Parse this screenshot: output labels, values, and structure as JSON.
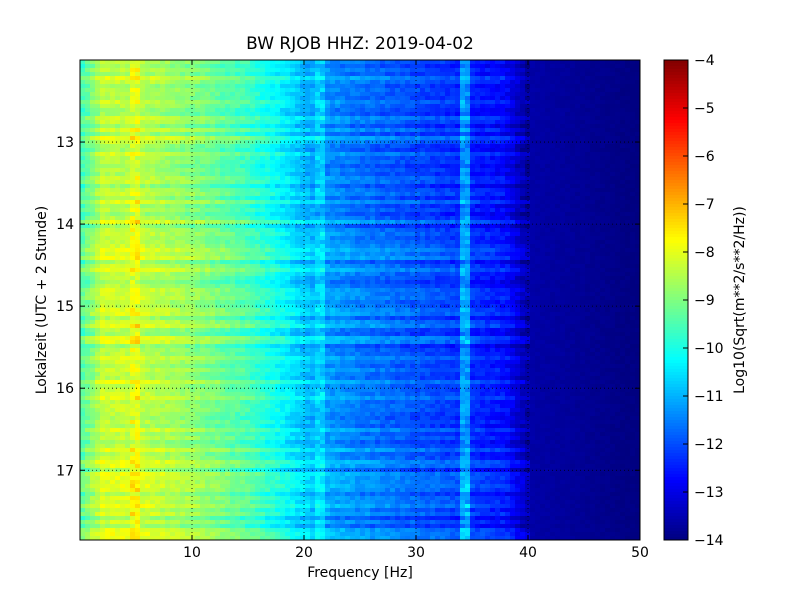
{
  "chart_data": {
    "type": "heatmap",
    "title": "BW RJOB HHZ: 2019-04-02",
    "xlabel": "Frequency [Hz]",
    "ylabel": "Lokalzeit (UTC + 2 Stunde)",
    "xlim": [
      0,
      50
    ],
    "ylim": [
      17.85,
      12.0
    ],
    "y_inverted": true,
    "grid": true,
    "x_ticks": [
      10,
      20,
      30,
      40,
      50
    ],
    "x_tick_labels": [
      "10",
      "20",
      "30",
      "40",
      "50"
    ],
    "y_ticks": [
      13,
      14,
      15,
      16,
      17
    ],
    "y_tick_labels": [
      "13",
      "14",
      "15",
      "16",
      "17"
    ],
    "colorbar": {
      "label": "Log10(Sqrt(m**2/s**2/Hz))",
      "colormap": "jet",
      "vmin": -14,
      "vmax": -4,
      "ticks": [
        -4,
        -5,
        -6,
        -7,
        -8,
        -9,
        -10,
        -11,
        -12,
        -13,
        -14
      ],
      "tick_labels": [
        "−4",
        "−5",
        "−6",
        "−7",
        "−8",
        "−9",
        "−10",
        "−11",
        "−12",
        "−13",
        "−14"
      ]
    },
    "profile": {
      "frequency_hz": [
        0,
        2,
        5,
        10,
        15,
        18,
        20,
        22,
        25,
        30,
        35,
        38,
        40,
        50
      ],
      "log10_psd": [
        -9.5,
        -8.3,
        -8.3,
        -8.8,
        -9.5,
        -10.2,
        -10.8,
        -11.2,
        -11.5,
        -11.9,
        -12.3,
        -12.6,
        -13.6,
        -14.0
      ]
    },
    "features": [
      {
        "frequency_hz": 5.0,
        "log10_psd": -7.9
      },
      {
        "frequency_hz": 21.5,
        "log10_psd": -10.6
      },
      {
        "frequency_hz": 34.5,
        "log10_psd": -11.2
      }
    ]
  }
}
